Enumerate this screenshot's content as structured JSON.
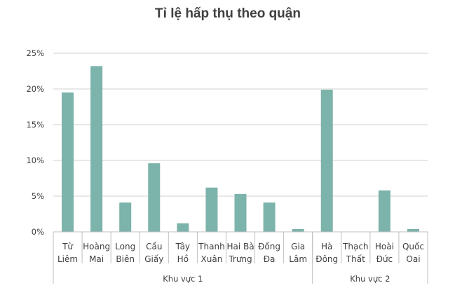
{
  "chart_data": {
    "type": "bar",
    "title": "Tỉ lệ hấp thụ theo quận",
    "xlabel": "",
    "ylabel": "",
    "ylim": [
      0,
      25
    ],
    "yticks": [
      "0%",
      "5%",
      "10%",
      "15%",
      "20%",
      "25%"
    ],
    "grid": true,
    "legend": "none",
    "bar_color": "#7cb3aa",
    "categories": [
      [
        "Từ",
        "Liêm"
      ],
      [
        "Hoàng",
        "Mai"
      ],
      [
        "Long",
        "Biên"
      ],
      [
        "Cầu",
        "Giấy"
      ],
      [
        "Tây",
        "Hồ"
      ],
      [
        "Thanh",
        "Xuân"
      ],
      [
        "Hai Bà",
        "Trưng"
      ],
      [
        "Đống",
        "Đa"
      ],
      [
        "Gia",
        "Lâm"
      ],
      [
        "Hà",
        "Đông"
      ],
      [
        "Thạch",
        "Thất"
      ],
      [
        "Hoài",
        "Đức"
      ],
      [
        "Quốc",
        "Oai"
      ]
    ],
    "values": [
      19.5,
      23.2,
      4.1,
      9.6,
      1.2,
      6.2,
      5.3,
      4.1,
      0.4,
      19.9,
      0.0,
      5.8,
      0.4
    ],
    "groups": [
      {
        "label": "Khu vực 1",
        "count": 9
      },
      {
        "label": "Khu vực 2",
        "count": 4
      }
    ]
  }
}
